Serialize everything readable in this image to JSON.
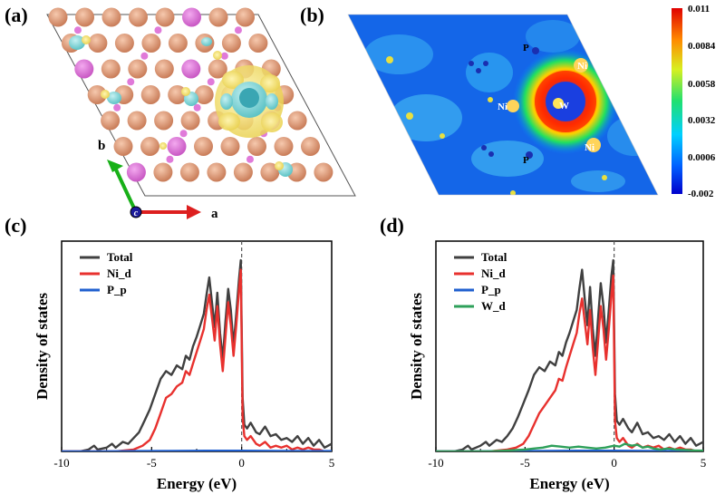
{
  "panels": {
    "a": {
      "label": "(a)",
      "axis_b_label": "b",
      "axis_a_label": "a",
      "axis_c_label": "c"
    },
    "b": {
      "label": "(b)",
      "atom_labels": [
        "P",
        "Ni",
        "W",
        "Ni",
        "Ni",
        "P"
      ],
      "colorbar_ticks": [
        "0.011",
        "0.0084",
        "0.0058",
        "0.0032",
        "0.0006",
        "-0.002"
      ]
    },
    "c": {
      "label": "(c)"
    },
    "d": {
      "label": "(d)"
    }
  },
  "colors": {
    "total": "#404040",
    "ni_d": "#e8312e",
    "p_p": "#1f5fcf",
    "w_d": "#2ea05a",
    "atom_p": "#d9916e",
    "atom_ni_large": "#d9916e",
    "atom_violet": "#d96fd6",
    "isosurface_yellow": "#f3df6a",
    "isosurface_cyan": "#79d6d8"
  },
  "chart_data": [
    {
      "type": "line",
      "panel": "(c)",
      "xlabel": "Energy (eV)",
      "ylabel": "Density of states",
      "xlim": [
        -10,
        5
      ],
      "xticks": [
        "-10",
        "-5",
        "0",
        "5"
      ],
      "fermi_line_x": 0,
      "legend_position": "top-left",
      "series": [
        {
          "name": "Total",
          "x": [
            -10,
            -9,
            -8.5,
            -8.2,
            -8,
            -7.5,
            -7.2,
            -7,
            -6.6,
            -6.3,
            -6,
            -5.7,
            -5.4,
            -5.1,
            -4.8,
            -4.5,
            -4.2,
            -3.9,
            -3.6,
            -3.3,
            -3.1,
            -2.9,
            -2.7,
            -2.5,
            -2.3,
            -2.1,
            -1.95,
            -1.8,
            -1.65,
            -1.5,
            -1.35,
            -1.2,
            -1.05,
            -0.9,
            -0.75,
            -0.6,
            -0.45,
            -0.3,
            -0.15,
            -0.05,
            0.05,
            0.15,
            0.3,
            0.5,
            0.8,
            1.0,
            1.3,
            1.6,
            1.9,
            2.2,
            2.5,
            2.8,
            3.1,
            3.4,
            3.7,
            4.0,
            4.3,
            4.6,
            5.0
          ],
          "y": [
            0.0,
            0.0,
            0.01,
            0.03,
            0.01,
            0.02,
            0.04,
            0.02,
            0.05,
            0.04,
            0.07,
            0.1,
            0.16,
            0.22,
            0.3,
            0.38,
            0.42,
            0.4,
            0.45,
            0.43,
            0.5,
            0.48,
            0.55,
            0.6,
            0.66,
            0.72,
            0.82,
            0.91,
            0.78,
            0.65,
            0.83,
            0.62,
            0.48,
            0.68,
            0.85,
            0.74,
            0.55,
            0.72,
            0.9,
            1.0,
            0.28,
            0.14,
            0.12,
            0.15,
            0.1,
            0.09,
            0.13,
            0.08,
            0.09,
            0.06,
            0.07,
            0.05,
            0.08,
            0.04,
            0.07,
            0.03,
            0.06,
            0.02,
            0.04
          ]
        },
        {
          "name": "Ni_d",
          "x": [
            -10,
            -7,
            -6,
            -5.5,
            -5.1,
            -4.8,
            -4.5,
            -4.2,
            -3.9,
            -3.6,
            -3.3,
            -3.1,
            -2.9,
            -2.7,
            -2.5,
            -2.3,
            -2.1,
            -1.95,
            -1.8,
            -1.65,
            -1.5,
            -1.35,
            -1.2,
            -1.05,
            -0.9,
            -0.75,
            -0.6,
            -0.45,
            -0.3,
            -0.15,
            -0.05,
            0.05,
            0.15,
            0.3,
            0.5,
            0.8,
            1.0,
            1.3,
            1.6,
            1.9,
            2.2,
            2.5,
            2.8,
            3.1,
            3.4,
            3.7,
            4.0,
            4.3,
            4.6,
            5.0
          ],
          "y": [
            0.0,
            0.0,
            0.01,
            0.03,
            0.06,
            0.12,
            0.2,
            0.28,
            0.3,
            0.34,
            0.36,
            0.42,
            0.4,
            0.46,
            0.52,
            0.58,
            0.64,
            0.74,
            0.82,
            0.7,
            0.58,
            0.76,
            0.56,
            0.42,
            0.6,
            0.78,
            0.66,
            0.5,
            0.66,
            0.84,
            0.95,
            0.18,
            0.08,
            0.06,
            0.08,
            0.04,
            0.03,
            0.05,
            0.02,
            0.03,
            0.02,
            0.03,
            0.01,
            0.02,
            0.01,
            0.02,
            0.01,
            0.01,
            0.0,
            0.0
          ]
        },
        {
          "name": "P_p",
          "x": [
            -10,
            -8,
            -6,
            -4,
            -2,
            0,
            2,
            4,
            5
          ],
          "y": [
            0.0,
            0.0,
            0.002,
            0.003,
            0.004,
            0.004,
            0.003,
            0.002,
            0.002
          ]
        }
      ]
    },
    {
      "type": "line",
      "panel": "(d)",
      "xlabel": "Energy (eV)",
      "ylabel": "Density of states",
      "xlim": [
        -10,
        5
      ],
      "xticks": [
        "-10",
        "-5",
        "0",
        "5"
      ],
      "fermi_line_x": 0,
      "legend_position": "top-left",
      "series": [
        {
          "name": "Total",
          "x": [
            -10,
            -9,
            -8.5,
            -8.2,
            -8,
            -7.5,
            -7.2,
            -7,
            -6.6,
            -6.3,
            -6,
            -5.7,
            -5.4,
            -5.1,
            -4.8,
            -4.5,
            -4.2,
            -3.9,
            -3.6,
            -3.3,
            -3.1,
            -2.9,
            -2.7,
            -2.5,
            -2.3,
            -2.1,
            -1.95,
            -1.8,
            -1.65,
            -1.5,
            -1.35,
            -1.2,
            -1.05,
            -0.9,
            -0.75,
            -0.6,
            -0.45,
            -0.3,
            -0.15,
            -0.05,
            0.05,
            0.15,
            0.3,
            0.5,
            0.8,
            1.0,
            1.3,
            1.6,
            1.9,
            2.2,
            2.5,
            2.8,
            3.1,
            3.4,
            3.7,
            4.0,
            4.3,
            4.6,
            5.0
          ],
          "y": [
            0.0,
            0.0,
            0.01,
            0.03,
            0.01,
            0.03,
            0.05,
            0.03,
            0.06,
            0.05,
            0.08,
            0.12,
            0.18,
            0.25,
            0.32,
            0.4,
            0.44,
            0.42,
            0.47,
            0.45,
            0.52,
            0.5,
            0.57,
            0.62,
            0.68,
            0.74,
            0.85,
            0.95,
            0.8,
            0.66,
            0.86,
            0.64,
            0.5,
            0.7,
            0.88,
            0.76,
            0.57,
            0.74,
            0.92,
            1.0,
            0.3,
            0.16,
            0.14,
            0.17,
            0.12,
            0.1,
            0.15,
            0.09,
            0.1,
            0.07,
            0.08,
            0.06,
            0.09,
            0.05,
            0.08,
            0.04,
            0.07,
            0.03,
            0.05
          ]
        },
        {
          "name": "Ni_d",
          "x": [
            -10,
            -7,
            -6,
            -5.5,
            -5.1,
            -4.8,
            -4.5,
            -4.2,
            -3.9,
            -3.6,
            -3.3,
            -3.1,
            -2.9,
            -2.7,
            -2.5,
            -2.3,
            -2.1,
            -1.95,
            -1.8,
            -1.65,
            -1.5,
            -1.35,
            -1.2,
            -1.05,
            -0.9,
            -0.75,
            -0.6,
            -0.45,
            -0.3,
            -0.15,
            -0.05,
            0.05,
            0.15,
            0.3,
            0.5,
            0.8,
            1.0,
            1.3,
            1.6,
            1.9,
            2.2,
            2.5,
            2.8,
            3.1,
            3.4,
            3.7,
            4.0,
            4.3,
            4.6,
            5.0
          ],
          "y": [
            0.0,
            0.0,
            0.01,
            0.02,
            0.04,
            0.08,
            0.14,
            0.2,
            0.24,
            0.28,
            0.32,
            0.38,
            0.37,
            0.44,
            0.5,
            0.56,
            0.62,
            0.72,
            0.8,
            0.68,
            0.56,
            0.74,
            0.54,
            0.4,
            0.58,
            0.76,
            0.64,
            0.48,
            0.64,
            0.82,
            0.92,
            0.16,
            0.07,
            0.05,
            0.07,
            0.03,
            0.02,
            0.04,
            0.02,
            0.03,
            0.02,
            0.03,
            0.01,
            0.02,
            0.01,
            0.02,
            0.01,
            0.01,
            0.0,
            0.0
          ]
        },
        {
          "name": "P_p",
          "x": [
            -10,
            -8,
            -6,
            -4,
            -2,
            0,
            2,
            4,
            5
          ],
          "y": [
            0.0,
            0.0,
            0.002,
            0.003,
            0.004,
            0.004,
            0.003,
            0.002,
            0.002
          ]
        },
        {
          "name": "W_d",
          "x": [
            -10,
            -7,
            -6,
            -5,
            -4.5,
            -4,
            -3.5,
            -3,
            -2.5,
            -2,
            -1.5,
            -1,
            -0.5,
            0,
            0.3,
            0.6,
            1.0,
            1.3,
            1.6,
            1.9,
            2.2,
            2.6,
            3.0,
            3.5,
            4.0,
            4.5,
            5.0
          ],
          "y": [
            0.0,
            0.0,
            0.005,
            0.01,
            0.015,
            0.02,
            0.03,
            0.025,
            0.02,
            0.025,
            0.02,
            0.015,
            0.02,
            0.03,
            0.025,
            0.04,
            0.03,
            0.035,
            0.02,
            0.025,
            0.015,
            0.01,
            0.015,
            0.01,
            0.008,
            0.005,
            0.004
          ]
        }
      ]
    }
  ]
}
